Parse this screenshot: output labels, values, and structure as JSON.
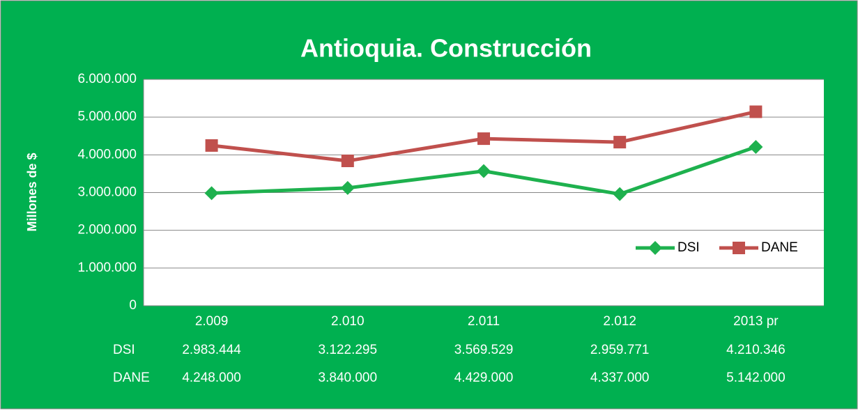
{
  "chart_data": {
    "type": "line",
    "title": "Antioquia. Construcción",
    "y_label": "Millones de $",
    "categories": [
      "2.009",
      "2.010",
      "2.011",
      "2.012",
      "2013 pr"
    ],
    "series": [
      {
        "name": "DSI",
        "color": "#1eb14e",
        "marker": "diamond",
        "values": [
          2983444,
          3122295,
          3569529,
          2959771,
          4210346
        ],
        "value_labels": [
          "2.983.444",
          "3.122.295",
          "3.569.529",
          "2.959.771",
          "4.210.346"
        ]
      },
      {
        "name": "DANE",
        "color": "#c0504d",
        "marker": "square",
        "values": [
          4248000,
          3840000,
          4429000,
          4337000,
          5142000
        ],
        "value_labels": [
          "4.248.000",
          "3.840.000",
          "4.429.000",
          "4.337.000",
          "5.142.000"
        ]
      }
    ],
    "ylim": [
      0,
      6000000
    ],
    "yticks": [
      0,
      {
        "value": 1000000,
        "label": "1.000.000"
      },
      {
        "value": 2000000,
        "label": "2.000.000"
      },
      {
        "value": 3000000,
        "label": "3.000.000"
      },
      {
        "value": 4000000,
        "label": "4.000.000"
      },
      {
        "value": 5000000,
        "label": "5.000.000"
      },
      {
        "value": 6000000,
        "label": "6.000.000"
      }
    ],
    "grid": true,
    "legend": "lower right"
  }
}
